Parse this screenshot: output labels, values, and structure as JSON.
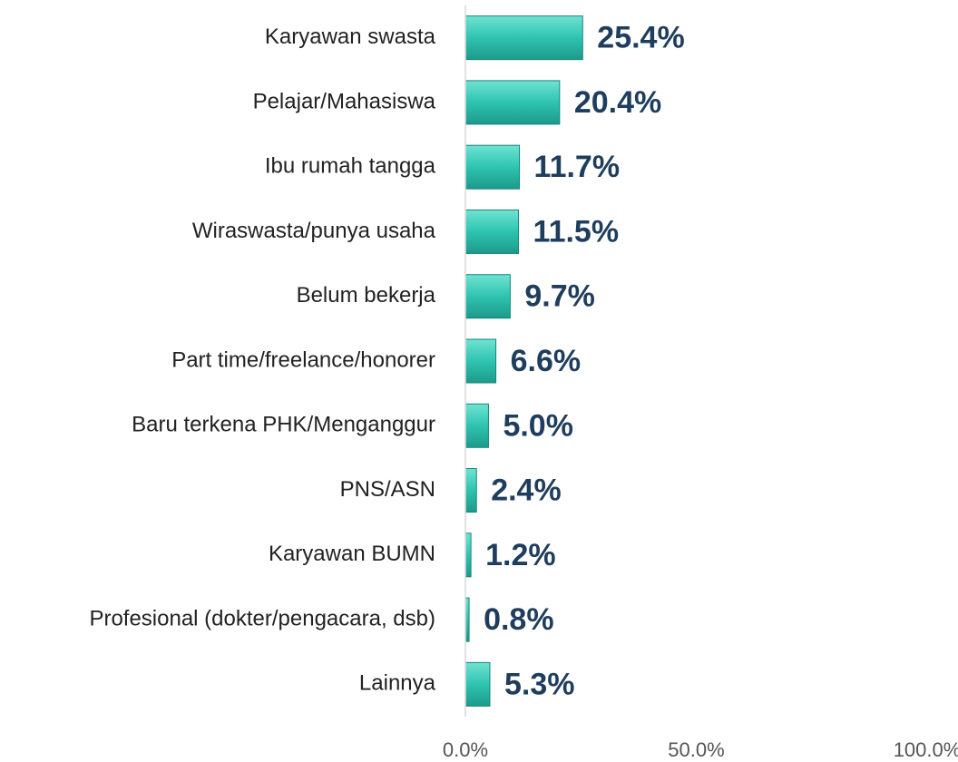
{
  "chart_data": {
    "type": "barh",
    "categories": [
      "Karyawan swasta",
      "Pelajar/Mahasiswa",
      "Ibu rumah tangga",
      "Wiraswasta/punya usaha",
      "Belum bekerja",
      "Part time/freelance/honorer",
      "Baru terkena PHK/Menganggur",
      "PNS/ASN",
      "Karyawan BUMN",
      "Profesional (dokter/pengacara, dsb)",
      "Lainnya"
    ],
    "values": [
      25.4,
      20.4,
      11.7,
      11.5,
      9.7,
      6.6,
      5.0,
      2.4,
      1.2,
      0.8,
      5.3
    ],
    "value_labels": [
      "25.4%",
      "20.4%",
      "11.7%",
      "11.5%",
      "9.7%",
      "6.6%",
      "5.0%",
      "2.4%",
      "1.2%",
      "0.8%",
      "5.3%"
    ],
    "color": "#2ec4b0",
    "xlim": [
      0,
      100
    ],
    "xticks": [
      {
        "value": 0,
        "label": "0.0%"
      },
      {
        "value": 50,
        "label": "50.0%"
      },
      {
        "value": 100,
        "label": "100.0%"
      }
    ]
  }
}
